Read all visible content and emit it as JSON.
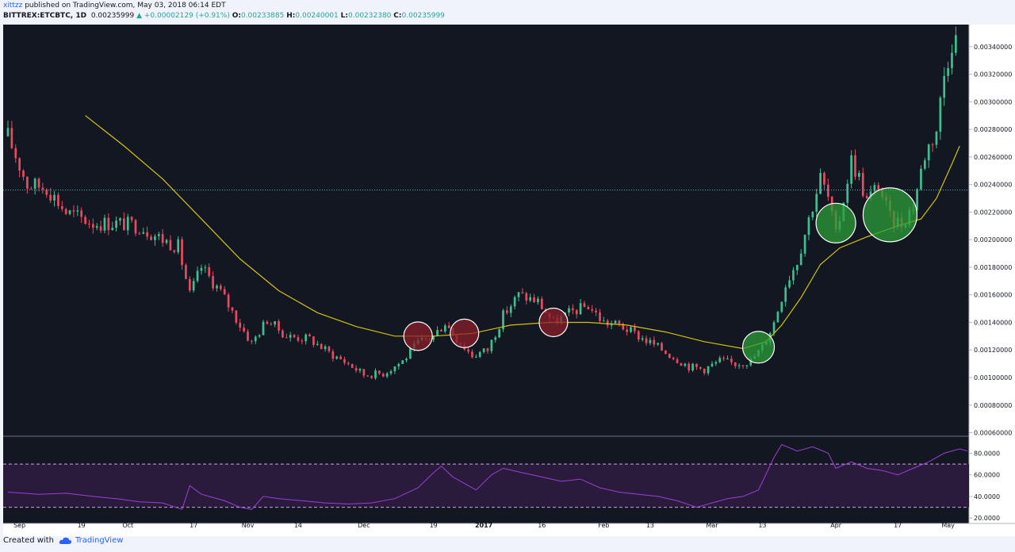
{
  "header": {
    "user": "xittzz",
    "published": " published on TradingView.com, May 03, 2018 06:14 EDT",
    "symbol": "BITTREX:ETCBTC, 1D",
    "last": "0.00235999",
    "change": "▲ +0.00002129 (+0.91%)",
    "o_label": "O:",
    "o_val": "0.00233885",
    "h_label": "H:",
    "h_val": "0.00240001",
    "l_label": "L:",
    "l_val": "0.00232380",
    "c_label": "C:",
    "c_val": "0.00235999"
  },
  "footer": {
    "created": "Created with",
    "brand": "TradingView"
  },
  "colors": {
    "background": "#131722",
    "up": "#3fbf8f",
    "down": "#e84a5f",
    "ma": "#d4c20f",
    "rsi": "#9c3fd6",
    "rsi_band": "#2a1b3d",
    "hline": "#4fc3c3",
    "red_circle": "#8a1f2a",
    "green_circle": "#2e9e3a"
  },
  "chart_data": {
    "type": "candlestick",
    "symbol": "BITTREX:ETCBTC",
    "interval": "1D",
    "price_axis": {
      "ylim": [
        0.00058,
        0.00356
      ],
      "ticks": [
        "0.00340000",
        "0.00320000",
        "0.00300000",
        "0.00280000",
        "0.00260000",
        "0.00240000",
        "0.00220000",
        "0.00200000",
        "0.00180000",
        "0.00160000",
        "0.00140000",
        "0.00120000",
        "0.00100000",
        "0.00080000",
        "0.00060000"
      ]
    },
    "x_axis": {
      "ticks": [
        {
          "label": "Sep",
          "day": 3
        },
        {
          "label": "19",
          "day": 19
        },
        {
          "label": "Oct",
          "day": 31
        },
        {
          "label": "17",
          "day": 48
        },
        {
          "label": "Nov",
          "day": 62
        },
        {
          "label": "14",
          "day": 75
        },
        {
          "label": "Dec",
          "day": 92
        },
        {
          "label": "19",
          "day": 110
        },
        {
          "label": "2017",
          "day": 123,
          "bold": true
        },
        {
          "label": "16",
          "day": 138
        },
        {
          "label": "Feb",
          "day": 154
        },
        {
          "label": "13",
          "day": 166
        },
        {
          "label": "Mar",
          "day": 182
        },
        {
          "label": "13",
          "day": 195
        },
        {
          "label": "Apr",
          "day": 214
        },
        {
          "label": "17",
          "day": 230
        },
        {
          "label": "May",
          "day": 243
        }
      ]
    },
    "horizontal_line": 0.00236,
    "ma_points": [
      [
        20,
        0.0029
      ],
      [
        30,
        0.00268
      ],
      [
        40,
        0.00244
      ],
      [
        50,
        0.00215
      ],
      [
        60,
        0.00186
      ],
      [
        70,
        0.00163
      ],
      [
        80,
        0.00147
      ],
      [
        90,
        0.00137
      ],
      [
        100,
        0.0013
      ],
      [
        110,
        0.0013
      ],
      [
        120,
        0.00132
      ],
      [
        130,
        0.00138
      ],
      [
        140,
        0.0014
      ],
      [
        150,
        0.0014
      ],
      [
        160,
        0.00138
      ],
      [
        170,
        0.00133
      ],
      [
        180,
        0.00126
      ],
      [
        190,
        0.00121
      ],
      [
        196,
        0.00126
      ],
      [
        200,
        0.00138
      ],
      [
        205,
        0.00158
      ],
      [
        210,
        0.00182
      ],
      [
        215,
        0.00194
      ],
      [
        222,
        0.00202
      ],
      [
        230,
        0.0021
      ],
      [
        236,
        0.00215
      ],
      [
        240,
        0.0023
      ],
      [
        244,
        0.00255
      ],
      [
        246,
        0.00268
      ]
    ],
    "anchors": [
      [
        0,
        0.00275
      ],
      [
        5,
        0.0024
      ],
      [
        10,
        0.00238
      ],
      [
        15,
        0.0022
      ],
      [
        22,
        0.00212
      ],
      [
        28,
        0.00212
      ],
      [
        34,
        0.0021
      ],
      [
        40,
        0.002
      ],
      [
        44,
        0.00195
      ],
      [
        47,
        0.0016
      ],
      [
        50,
        0.0018
      ],
      [
        55,
        0.00162
      ],
      [
        60,
        0.00138
      ],
      [
        63,
        0.00125
      ],
      [
        67,
        0.00142
      ],
      [
        72,
        0.0013
      ],
      [
        78,
        0.00128
      ],
      [
        83,
        0.00118
      ],
      [
        88,
        0.0011
      ],
      [
        92,
        0.00102
      ],
      [
        97,
        0.00103
      ],
      [
        102,
        0.00112
      ],
      [
        106,
        0.00125
      ],
      [
        110,
        0.0013
      ],
      [
        113,
        0.0014
      ],
      [
        116,
        0.00128
      ],
      [
        120,
        0.00116
      ],
      [
        124,
        0.0012
      ],
      [
        128,
        0.00145
      ],
      [
        132,
        0.0016
      ],
      [
        137,
        0.00155
      ],
      [
        141,
        0.0014
      ],
      [
        146,
        0.00148
      ],
      [
        150,
        0.00152
      ],
      [
        154,
        0.0014
      ],
      [
        158,
        0.00138
      ],
      [
        163,
        0.0013
      ],
      [
        168,
        0.00122
      ],
      [
        172,
        0.00115
      ],
      [
        176,
        0.00108
      ],
      [
        180,
        0.00106
      ],
      [
        184,
        0.00112
      ],
      [
        188,
        0.0011
      ],
      [
        192,
        0.00112
      ],
      [
        195,
        0.00122
      ],
      [
        198,
        0.0014
      ],
      [
        201,
        0.00168
      ],
      [
        204,
        0.00185
      ],
      [
        207,
        0.00215
      ],
      [
        210,
        0.00245
      ],
      [
        212,
        0.0023
      ],
      [
        214,
        0.00202
      ],
      [
        216,
        0.0023
      ],
      [
        218,
        0.00258
      ],
      [
        220,
        0.00245
      ],
      [
        222,
        0.00228
      ],
      [
        225,
        0.0024
      ],
      [
        228,
        0.00215
      ],
      [
        231,
        0.00212
      ],
      [
        234,
        0.00225
      ],
      [
        237,
        0.00262
      ],
      [
        240,
        0.0028
      ],
      [
        242,
        0.0032
      ],
      [
        244,
        0.00345
      ]
    ],
    "rsi": {
      "axis_ticks": [
        "80.0000",
        "60.0000",
        "40.0000",
        "20.0000"
      ],
      "ylim": [
        15,
        95
      ],
      "overbought": 70,
      "oversold": 30,
      "points": [
        [
          0,
          44
        ],
        [
          8,
          42
        ],
        [
          15,
          43
        ],
        [
          22,
          40
        ],
        [
          28,
          38
        ],
        [
          34,
          35
        ],
        [
          40,
          34
        ],
        [
          45,
          28
        ],
        [
          47,
          50
        ],
        [
          50,
          42
        ],
        [
          56,
          36
        ],
        [
          60,
          30
        ],
        [
          63,
          28
        ],
        [
          66,
          40
        ],
        [
          70,
          38
        ],
        [
          76,
          36
        ],
        [
          82,
          34
        ],
        [
          88,
          33
        ],
        [
          94,
          34
        ],
        [
          100,
          38
        ],
        [
          106,
          48
        ],
        [
          110,
          62
        ],
        [
          112,
          68
        ],
        [
          115,
          58
        ],
        [
          118,
          52
        ],
        [
          121,
          46
        ],
        [
          125,
          60
        ],
        [
          128,
          66
        ],
        [
          133,
          62
        ],
        [
          138,
          58
        ],
        [
          143,
          54
        ],
        [
          148,
          56
        ],
        [
          153,
          48
        ],
        [
          158,
          44
        ],
        [
          163,
          42
        ],
        [
          168,
          40
        ],
        [
          173,
          36
        ],
        [
          178,
          30
        ],
        [
          182,
          34
        ],
        [
          186,
          38
        ],
        [
          190,
          40
        ],
        [
          194,
          46
        ],
        [
          198,
          76
        ],
        [
          200,
          88
        ],
        [
          204,
          82
        ],
        [
          208,
          86
        ],
        [
          212,
          80
        ],
        [
          214,
          66
        ],
        [
          218,
          72
        ],
        [
          222,
          66
        ],
        [
          226,
          64
        ],
        [
          230,
          60
        ],
        [
          234,
          66
        ],
        [
          238,
          72
        ],
        [
          242,
          80
        ],
        [
          246,
          84
        ],
        [
          248,
          82
        ]
      ]
    },
    "annotations": [
      {
        "type": "circle",
        "color": "red",
        "day": 106,
        "price": 0.0013
      },
      {
        "type": "circle",
        "color": "red",
        "day": 118,
        "price": 0.00132
      },
      {
        "type": "circle",
        "color": "red",
        "day": 141,
        "price": 0.0014
      },
      {
        "type": "circle",
        "color": "green",
        "day": 194,
        "price": 0.00122
      },
      {
        "type": "circle",
        "color": "green",
        "day": 214,
        "price": 0.00212
      },
      {
        "type": "circle",
        "color": "green",
        "day": 228,
        "price": 0.00218
      }
    ]
  }
}
